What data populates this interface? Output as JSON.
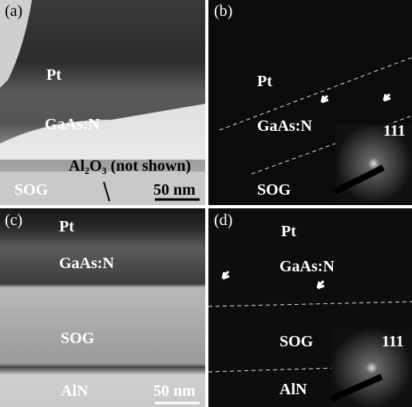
{
  "panels": [
    {
      "label": "(a)",
      "texts": [
        "Pt",
        "GaAs:N",
        "Al₂O₃ (not shown)",
        "SOG",
        "50 nm"
      ]
    },
    {
      "label": "(b)",
      "texts": [
        "Pt",
        "GaAs:N",
        "SOG",
        "111"
      ]
    },
    {
      "label": "(c)",
      "texts": [
        "Pt",
        "GaAs:N",
        "SOG",
        "AlN",
        "50 nm"
      ]
    },
    {
      "label": "(d)",
      "texts": [
        "Pt",
        "GaAs:N",
        "SOG",
        "AlN",
        "111"
      ]
    }
  ]
}
